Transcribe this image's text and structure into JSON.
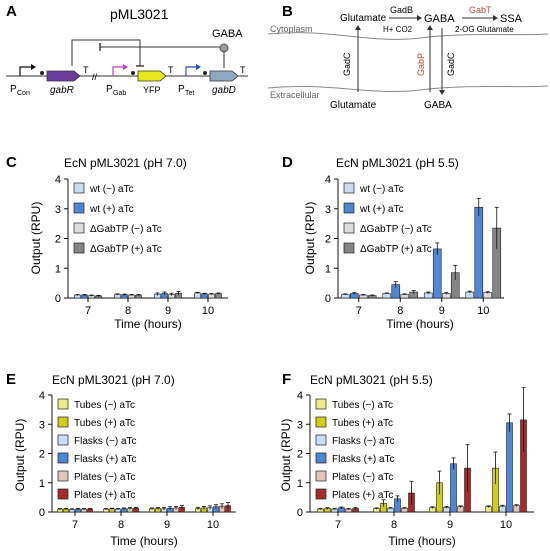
{
  "panel_letters": [
    "A",
    "B",
    "C",
    "D",
    "E",
    "F"
  ],
  "diagram_a": {
    "title": "pML3021",
    "gaba": "GABA",
    "promoter_con": "P",
    "promoter_con_sub": "Con",
    "gene_gabR": "gabR",
    "term1": "T",
    "break_mark": "//",
    "promoter_gab": "P",
    "promoter_gab_sub": "Gab",
    "gene_yfp": "YFP",
    "term2": "T",
    "promoter_tet": "P",
    "promoter_tet_sub": "Tet",
    "gene_gabD": "gabD",
    "term3": "T",
    "colors": {
      "gabR": "#6a3d9a",
      "yfp": "#e8e81a",
      "gabD": "#8fa6bf",
      "promoter": "#1f4fd8"
    }
  },
  "diagram_b": {
    "glutamate_top": "Glutamate",
    "gadB": "GadB",
    "h_co2": "H+    CO2",
    "gaba_top": "GABA",
    "gabT": "GabT",
    "og_glu": "2-OG   Glutamate",
    "ssa": "SSA",
    "cytoplasm": "Cytoplasm",
    "gadC_left": "GadC",
    "gabP": "GabP",
    "gadC_right": "GadC",
    "extracellular": "Extracellular",
    "glutamate_bottom": "Glutamate",
    "gaba_bottom": "GABA",
    "colors": {
      "gabT": "#b5463a",
      "gabP": "#b5463a"
    }
  },
  "chart_data": [
    {
      "panel": "C",
      "type": "bar",
      "title": "EcN pML3021 (pH 7.0)",
      "xlabel": "Time (hours)",
      "ylabel": "Output (RPU)",
      "categories": [
        "7",
        "8",
        "9",
        "10"
      ],
      "ylim": [
        0,
        4
      ],
      "yticks": [
        "0",
        "1",
        "2",
        "3",
        "4"
      ],
      "legend_position": "top-left",
      "series": [
        {
          "name": "wt (−) aTc",
          "color": "#c9dcf3",
          "values": [
            0.1,
            0.12,
            0.13,
            0.17
          ],
          "errors": [
            0.02,
            0.02,
            0.04,
            0.02
          ]
        },
        {
          "name": "wt (+) aTc",
          "color": "#4f86d6",
          "values": [
            0.1,
            0.11,
            0.15,
            0.14
          ],
          "errors": [
            0.02,
            0.02,
            0.05,
            0.02
          ]
        },
        {
          "name": "ΔGabTP (−) aTc",
          "color": "#dcdcdc",
          "values": [
            0.08,
            0.1,
            0.12,
            0.13
          ],
          "errors": [
            0.02,
            0.02,
            0.04,
            0.02
          ]
        },
        {
          "name": "ΔGabTP (+) aTc",
          "color": "#858585",
          "values": [
            0.07,
            0.1,
            0.16,
            0.15
          ],
          "errors": [
            0.02,
            0.02,
            0.06,
            0.02
          ]
        }
      ]
    },
    {
      "panel": "D",
      "type": "bar",
      "title": "EcN pML3021 (pH 5.5)",
      "xlabel": "Time (hours)",
      "ylabel": "Output (RPU)",
      "categories": [
        "7",
        "8",
        "9",
        "10"
      ],
      "ylim": [
        0,
        4
      ],
      "yticks": [
        "0",
        "1",
        "2",
        "3",
        "4"
      ],
      "legend_position": "top-left",
      "series": [
        {
          "name": "wt (−) aTc",
          "color": "#c9dcf3",
          "values": [
            0.12,
            0.15,
            0.17,
            0.2
          ],
          "errors": [
            0.02,
            0.02,
            0.03,
            0.03
          ]
        },
        {
          "name": "wt (+) aTc",
          "color": "#4f86d6",
          "values": [
            0.15,
            0.45,
            1.65,
            3.05
          ],
          "errors": [
            0.03,
            0.1,
            0.2,
            0.3
          ]
        },
        {
          "name": "ΔGabTP (−) aTc",
          "color": "#dcdcdc",
          "values": [
            0.1,
            0.12,
            0.15,
            0.18
          ],
          "errors": [
            0.02,
            0.02,
            0.03,
            0.03
          ]
        },
        {
          "name": "ΔGabTP (+) aTc",
          "color": "#858585",
          "values": [
            0.08,
            0.2,
            0.85,
            2.35
          ],
          "errors": [
            0.02,
            0.05,
            0.25,
            0.7
          ]
        }
      ]
    },
    {
      "panel": "E",
      "type": "bar",
      "title": "EcN pML3021 (pH 7.0)",
      "xlabel": "Time (hours)",
      "ylabel": "Output (RPU)",
      "categories": [
        "7",
        "8",
        "9",
        "10"
      ],
      "ylim": [
        0,
        4
      ],
      "yticks": [
        "0",
        "1",
        "2",
        "3",
        "4"
      ],
      "legend_position": "top-left",
      "series": [
        {
          "name": "Tubes (−) aTc",
          "color": "#ecec8a",
          "values": [
            0.1,
            0.1,
            0.11,
            0.12
          ],
          "errors": [
            0.02,
            0.02,
            0.03,
            0.04
          ]
        },
        {
          "name": "Tubes (+) aTc",
          "color": "#cfcf1a",
          "values": [
            0.1,
            0.11,
            0.12,
            0.14
          ],
          "errors": [
            0.02,
            0.02,
            0.03,
            0.05
          ]
        },
        {
          "name": "Flasks (−) aTc",
          "color": "#c9dcf3",
          "values": [
            0.09,
            0.1,
            0.11,
            0.15
          ],
          "errors": [
            0.02,
            0.02,
            0.04,
            0.06
          ]
        },
        {
          "name": "Flasks (+) aTc",
          "color": "#4f86d6",
          "values": [
            0.1,
            0.11,
            0.13,
            0.18
          ],
          "errors": [
            0.02,
            0.03,
            0.05,
            0.07
          ]
        },
        {
          "name": "Plates (−) aTc",
          "color": "#e3c3bc",
          "values": [
            0.1,
            0.12,
            0.14,
            0.2
          ],
          "errors": [
            0.02,
            0.03,
            0.05,
            0.08
          ]
        },
        {
          "name": "Plates (+) aTc",
          "color": "#a52a2a",
          "values": [
            0.1,
            0.13,
            0.16,
            0.22
          ],
          "errors": [
            0.02,
            0.03,
            0.06,
            0.1
          ]
        }
      ]
    },
    {
      "panel": "F",
      "type": "bar",
      "title": "EcN pML3021 (pH 5.5)",
      "xlabel": "Time (hours)",
      "ylabel": "Output (RPU)",
      "categories": [
        "7",
        "8",
        "9",
        "10"
      ],
      "ylim": [
        0,
        4
      ],
      "yticks": [
        "0",
        "1",
        "2",
        "3",
        "4"
      ],
      "legend_position": "top-left",
      "series": [
        {
          "name": "Tubes (−) aTc",
          "color": "#ecec8a",
          "values": [
            0.1,
            0.12,
            0.15,
            0.18
          ],
          "errors": [
            0.02,
            0.02,
            0.03,
            0.03
          ]
        },
        {
          "name": "Tubes (+) aTc",
          "color": "#cfcf1a",
          "values": [
            0.12,
            0.3,
            1.0,
            1.5
          ],
          "errors": [
            0.03,
            0.12,
            0.4,
            0.55
          ]
        },
        {
          "name": "Flasks (−) aTc",
          "color": "#c9dcf3",
          "values": [
            0.1,
            0.13,
            0.16,
            0.2
          ],
          "errors": [
            0.02,
            0.02,
            0.03,
            0.03
          ]
        },
        {
          "name": "Flasks (+) aTc",
          "color": "#4f86d6",
          "values": [
            0.14,
            0.45,
            1.65,
            3.05
          ],
          "errors": [
            0.03,
            0.1,
            0.2,
            0.3
          ]
        },
        {
          "name": "Plates (−) aTc",
          "color": "#e3c3bc",
          "values": [
            0.1,
            0.13,
            0.18,
            0.22
          ],
          "errors": [
            0.02,
            0.02,
            0.03,
            0.03
          ]
        },
        {
          "name": "Plates (+) aTc",
          "color": "#a52a2a",
          "values": [
            0.12,
            0.65,
            1.5,
            3.15
          ],
          "errors": [
            0.03,
            0.4,
            0.8,
            1.1
          ]
        }
      ]
    }
  ]
}
